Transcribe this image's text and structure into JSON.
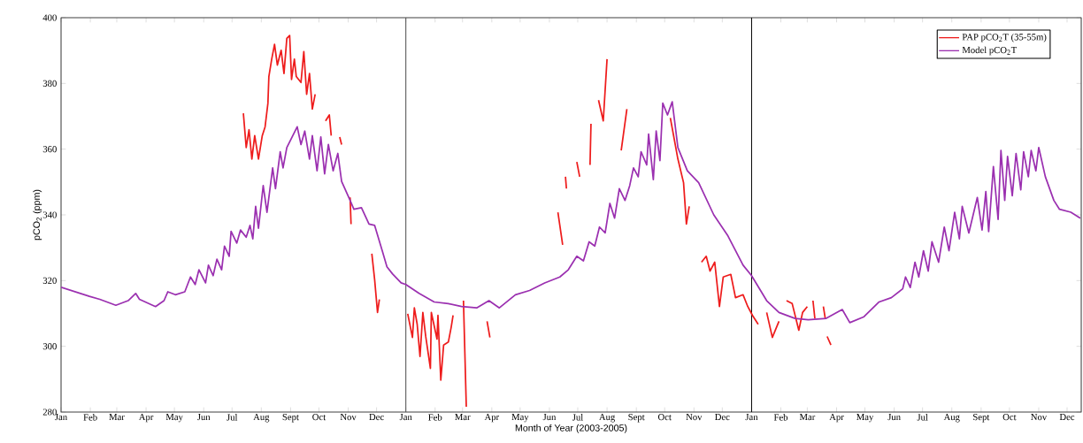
{
  "chart_data": {
    "type": "line",
    "xlabel": "Month of Year (2003-2005)",
    "ylabel": "pCO$_{2}$ (ppm)",
    "xlim": [
      "2003-01-01",
      "2005-12-16"
    ],
    "ylim": [
      280,
      400
    ],
    "yticks": [
      280,
      300,
      320,
      340,
      360,
      380,
      400
    ],
    "xticks": [
      {
        "value": "2003-01-01",
        "label": "Jan"
      },
      {
        "value": "2003-02-01",
        "label": "Feb"
      },
      {
        "value": "2003-03-01",
        "label": "Mar"
      },
      {
        "value": "2003-04-01",
        "label": "Apr"
      },
      {
        "value": "2003-05-01",
        "label": "May"
      },
      {
        "value": "2003-06-01",
        "label": "Jun"
      },
      {
        "value": "2003-07-01",
        "label": "Jul"
      },
      {
        "value": "2003-08-01",
        "label": "Aug"
      },
      {
        "value": "2003-09-01",
        "label": "Sept"
      },
      {
        "value": "2003-10-01",
        "label": "Oct"
      },
      {
        "value": "2003-11-01",
        "label": "Nov"
      },
      {
        "value": "2003-12-01",
        "label": "Dec"
      },
      {
        "value": "2004-01-01",
        "label": "Jan"
      },
      {
        "value": "2004-02-01",
        "label": "Feb"
      },
      {
        "value": "2004-03-01",
        "label": "Mar"
      },
      {
        "value": "2004-04-01",
        "label": "Apr"
      },
      {
        "value": "2004-05-01",
        "label": "May"
      },
      {
        "value": "2004-06-01",
        "label": "Jun"
      },
      {
        "value": "2004-07-01",
        "label": "Jul"
      },
      {
        "value": "2004-08-01",
        "label": "Aug"
      },
      {
        "value": "2004-09-01",
        "label": "Sept"
      },
      {
        "value": "2004-10-01",
        "label": "Oct"
      },
      {
        "value": "2004-11-01",
        "label": "Nov"
      },
      {
        "value": "2004-12-01",
        "label": "Dec"
      },
      {
        "value": "2005-01-01",
        "label": "Jan"
      },
      {
        "value": "2005-02-01",
        "label": "Feb"
      },
      {
        "value": "2005-03-01",
        "label": "Mar"
      },
      {
        "value": "2005-04-01",
        "label": "Apr"
      },
      {
        "value": "2005-05-01",
        "label": "May"
      },
      {
        "value": "2005-06-01",
        "label": "Jun"
      },
      {
        "value": "2005-07-01",
        "label": "Jul"
      },
      {
        "value": "2005-08-01",
        "label": "Aug"
      },
      {
        "value": "2005-09-01",
        "label": "Sept"
      },
      {
        "value": "2005-10-01",
        "label": "Oct"
      },
      {
        "value": "2005-11-01",
        "label": "Nov"
      },
      {
        "value": "2005-12-01",
        "label": "Dec"
      }
    ],
    "legend": "top right",
    "grid": false,
    "line_style": "solid",
    "ref_lines": [
      {
        "axis": "x",
        "value": "2004-01-01",
        "color": "#555555"
      },
      {
        "axis": "x",
        "value": "2005-01-01",
        "color": "#000000"
      }
    ],
    "series": [
      {
        "name": "PAP pCO$_{2}$T (35-55m)",
        "color": "#ee1c1c",
        "x": [
          "2003-07-13",
          "2003-07-16",
          "2003-07-19",
          "2003-07-22",
          "2003-07-25",
          "2003-07-29",
          "2003-08-02",
          "2003-08-05",
          "2003-08-08",
          "2003-08-09",
          "2003-08-12",
          "2003-08-15",
          "2003-08-18",
          "2003-08-22",
          "2003-08-25",
          "2003-08-28",
          "2003-08-31",
          "2003-09-02",
          "2003-09-05",
          "2003-09-07",
          "2003-09-12",
          "2003-09-15",
          "2003-09-18",
          "2003-09-21",
          "2003-09-24",
          "2003-09-27",
          "2003-09-29",
          "2003-10-08",
          "2003-10-12",
          "2003-10-14",
          "2003-10-16",
          "2003-10-23",
          "2003-10-25",
          "2003-10-28",
          "2003-11-03",
          "2003-11-04",
          "2003-11-16",
          "2003-11-26",
          "2003-11-29",
          "2003-12-02",
          "2003-12-04",
          "2003-12-16",
          "2004-01-03",
          "2004-01-08",
          "2004-01-10",
          "2004-01-13",
          "2004-01-16",
          "2004-01-19",
          "2004-01-22",
          "2004-01-27",
          "2004-01-28",
          "2004-02-03",
          "2004-02-04",
          "2004-02-07",
          "2004-02-10",
          "2004-02-15",
          "2004-02-18",
          "2004-02-20",
          "2004-02-24",
          "2004-03-02",
          "2004-03-05",
          "2004-03-16",
          "2004-03-27",
          "2004-03-30",
          "2004-05-01",
          "2004-06-10",
          "2004-06-15",
          "2004-06-16",
          "2004-06-18",
          "2004-06-19",
          "2004-06-25",
          "2004-06-30",
          "2004-07-03",
          "2004-07-10",
          "2004-07-14",
          "2004-07-15",
          "2004-07-19",
          "2004-07-23",
          "2004-07-28",
          "2004-08-01",
          "2004-08-07",
          "2004-08-16",
          "2004-08-22",
          "2004-09-01",
          "2004-10-07",
          "2004-10-15",
          "2004-10-21",
          "2004-10-24",
          "2004-10-27",
          "2004-11-04",
          "2004-11-09",
          "2004-11-14",
          "2004-11-18",
          "2004-11-23",
          "2004-11-28",
          "2004-12-02",
          "2004-12-10",
          "2004-12-15",
          "2004-12-23",
          "2004-12-28",
          "2005-01-02",
          "2005-01-08",
          "2005-01-13",
          "2005-01-17",
          "2005-01-23",
          "2005-01-30",
          "2005-02-04",
          "2005-02-07",
          "2005-02-13",
          "2005-02-20",
          "2005-02-24",
          "2005-03-01",
          "2005-03-04",
          "2005-03-07",
          "2005-03-09",
          "2005-03-13",
          "2005-03-18",
          "2005-03-20",
          "2005-03-21",
          "2005-03-22",
          "2005-03-26"
        ],
        "values": [
          370.9,
          360.5,
          365.9,
          357.0,
          364.1,
          357.0,
          364.1,
          366.8,
          374.0,
          382.1,
          387.4,
          391.9,
          385.6,
          390.1,
          383.0,
          393.7,
          394.6,
          381.2,
          387.4,
          382.1,
          380.3,
          389.7,
          376.7,
          383.0,
          372.2,
          376.7,
          null,
          368.6,
          370.4,
          364.1,
          null,
          363.7,
          361.4,
          null,
          345.3,
          337.2,
          null,
          328.2,
          320.2,
          310.3,
          314.3,
          null,
          309.9,
          302.7,
          311.7,
          306.7,
          296.9,
          310.3,
          303.1,
          293.3,
          310.3,
          302.2,
          309.4,
          289.7,
          300.4,
          301.3,
          305.8,
          309.4,
          null,
          313.9,
          281.6,
          null,
          307.6,
          302.7,
          null,
          340.8,
          330.9,
          null,
          351.6,
          348.0,
          null,
          356.1,
          351.6,
          null,
          355.2,
          367.7,
          null,
          374.9,
          368.6,
          387.4,
          null,
          359.6,
          372.2,
          null,
          369.5,
          357.0,
          349.8,
          337.2,
          342.6,
          null,
          325.6,
          327.4,
          322.9,
          325.6,
          312.1,
          321.1,
          321.9,
          314.8,
          315.7,
          312.1,
          309.4,
          306.7,
          null,
          310.3,
          302.7,
          307.6,
          null,
          313.9,
          313.0,
          304.9,
          310.3,
          312.1,
          null,
          313.9,
          308.5,
          null,
          312.1,
          308.5,
          null,
          303.0,
          300.4
        ]
      },
      {
        "name": "Model pCO$_{2}$T",
        "color": "#9b30b0",
        "x": [
          "2003-01-01",
          "2003-01-31",
          "2003-02-11",
          "2003-02-28",
          "2003-03-13",
          "2003-03-21",
          "2003-03-25",
          "2003-04-11",
          "2003-04-20",
          "2003-04-24",
          "2003-05-02",
          "2003-05-12",
          "2003-05-18",
          "2003-05-23",
          "2003-05-27",
          "2003-06-03",
          "2003-06-06",
          "2003-06-11",
          "2003-06-15",
          "2003-06-20",
          "2003-06-23",
          "2003-06-28",
          "2003-06-30",
          "2003-07-06",
          "2003-07-10",
          "2003-07-16",
          "2003-07-20",
          "2003-07-23",
          "2003-07-26",
          "2003-07-29",
          "2003-08-03",
          "2003-08-07",
          "2003-08-13",
          "2003-08-16",
          "2003-08-21",
          "2003-08-24",
          "2003-08-28",
          "2003-09-08",
          "2003-09-12",
          "2003-09-16",
          "2003-09-21",
          "2003-09-24",
          "2003-09-29",
          "2003-10-03",
          "2003-10-07",
          "2003-10-11",
          "2003-10-16",
          "2003-10-21",
          "2003-10-25",
          "2003-11-03",
          "2003-11-07",
          "2003-11-15",
          "2003-11-23",
          "2003-11-29",
          "2003-12-07",
          "2003-12-12",
          "2003-12-18",
          "2003-12-27",
          "2004-01-01",
          "2004-01-15",
          "2004-01-31",
          "2004-02-15",
          "2004-02-29",
          "2004-03-16",
          "2004-03-29",
          "2004-04-09",
          "2004-04-26",
          "2004-05-11",
          "2004-05-27",
          "2004-06-12",
          "2004-06-21",
          "2004-06-30",
          "2004-07-07",
          "2004-07-13",
          "2004-07-19",
          "2004-07-24",
          "2004-07-30",
          "2004-08-04",
          "2004-08-09",
          "2004-08-14",
          "2004-08-20",
          "2004-08-25",
          "2004-08-29",
          "2004-09-03",
          "2004-09-06",
          "2004-09-12",
          "2004-09-14",
          "2004-09-19",
          "2004-09-22",
          "2004-09-26",
          "2004-09-29",
          "2004-10-04",
          "2004-10-09",
          "2004-10-15",
          "2004-10-25",
          "2004-11-06",
          "2004-11-22",
          "2004-12-07",
          "2004-12-23",
          "2005-01-01",
          "2005-01-17",
          "2005-01-30",
          "2005-02-16",
          "2005-03-02",
          "2005-03-21",
          "2005-04-07",
          "2005-04-15",
          "2005-04-30",
          "2005-05-16",
          "2005-05-29",
          "2005-06-10",
          "2005-06-13",
          "2005-06-18",
          "2005-06-23",
          "2005-06-27",
          "2005-07-02",
          "2005-07-07",
          "2005-07-11",
          "2005-07-18",
          "2005-07-24",
          "2005-07-29",
          "2005-08-04",
          "2005-08-09",
          "2005-08-12",
          "2005-08-19",
          "2005-08-28",
          "2005-09-02",
          "2005-09-06",
          "2005-09-09",
          "2005-09-14",
          "2005-09-19",
          "2005-09-22",
          "2005-09-26",
          "2005-09-29",
          "2005-10-04",
          "2005-10-08",
          "2005-10-13",
          "2005-10-16",
          "2005-10-21",
          "2005-10-24",
          "2005-10-29",
          "2005-11-01",
          "2005-11-08",
          "2005-11-17",
          "2005-11-23",
          "2005-12-05",
          "2005-12-15"
        ],
        "values": [
          318,
          315.2,
          314.3,
          312.5,
          313.9,
          316.1,
          314.3,
          312.1,
          313.9,
          316.6,
          315.7,
          316.6,
          321.1,
          318.8,
          323.3,
          319.3,
          324.7,
          321.5,
          326.5,
          323.3,
          330.5,
          327.4,
          335.0,
          331.4,
          335.4,
          333.2,
          336.8,
          332.7,
          342.6,
          335.9,
          348.9,
          340.8,
          354.3,
          348.0,
          359.2,
          354.3,
          360.5,
          366.8,
          361.4,
          365.5,
          357.0,
          364.1,
          353.4,
          363.7,
          352.5,
          361.4,
          353.4,
          358.7,
          350.2,
          344.4,
          341.7,
          342.2,
          337.2,
          336.8,
          329.1,
          324.2,
          322.0,
          319.3,
          318.8,
          316.1,
          313.5,
          313.0,
          312.1,
          311.7,
          313.9,
          311.7,
          315.7,
          317.0,
          319.3,
          321.1,
          323.3,
          327.4,
          326.0,
          331.8,
          330.5,
          336.3,
          334.5,
          343.5,
          339.0,
          348.0,
          344.4,
          348.9,
          354.3,
          351.6,
          359.2,
          355.2,
          364.6,
          350.7,
          365.5,
          356.5,
          374.0,
          370.4,
          374.4,
          360.5,
          353.4,
          349.8,
          340.0,
          333.6,
          324.7,
          321.5,
          313.9,
          310.3,
          308.5,
          308.1,
          308.5,
          311.2,
          307.2,
          309.0,
          313.5,
          314.8,
          317.5,
          321.1,
          317.9,
          325.6,
          321.1,
          329.1,
          322.9,
          331.8,
          325.6,
          336.3,
          329.1,
          340.8,
          332.7,
          342.6,
          334.5,
          345.3,
          335.4,
          347.1,
          334.9,
          354.7,
          338.6,
          359.6,
          344.4,
          357.8,
          345.8,
          358.7,
          347.6,
          359.2,
          351.6,
          359.6,
          353.4,
          360.5,
          351.6,
          344.4,
          341.7,
          340.8,
          339.0
        ]
      }
    ]
  }
}
